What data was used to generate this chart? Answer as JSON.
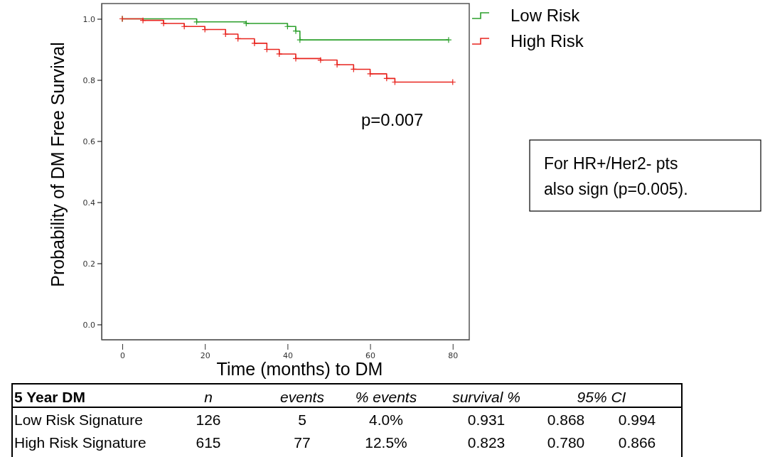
{
  "chart_data": {
    "type": "step",
    "xlabel": "Time (months) to DM",
    "ylabel": "Probability of DM Free Survival",
    "xlim": [
      -5,
      84
    ],
    "xticks": [
      0,
      20,
      40,
      60,
      80
    ],
    "ylim": [
      -0.05,
      1.05
    ],
    "yticks": [
      {
        "value": 0,
        "label": "0.0"
      },
      0.2,
      0.4,
      0.6,
      0.8,
      {
        "value": 1,
        "label": "1.0"
      }
    ],
    "series": [
      {
        "name": "Low Risk",
        "color": "#2ca02c",
        "x": [
          0,
          18,
          30,
          40,
          42,
          43,
          79
        ],
        "values": [
          1,
          0.99,
          0.985,
          0.975,
          0.96,
          0.931,
          0.931
        ]
      },
      {
        "name": "High Risk",
        "color": "#e8251f",
        "x": [
          0,
          5,
          10,
          15,
          20,
          25,
          28,
          32,
          35,
          38,
          42,
          48,
          52,
          56,
          60,
          64,
          66,
          80
        ],
        "values": [
          1,
          0.995,
          0.985,
          0.975,
          0.965,
          0.95,
          0.935,
          0.92,
          0.9,
          0.885,
          0.87,
          0.865,
          0.85,
          0.835,
          0.82,
          0.805,
          0.793,
          0.793
        ]
      }
    ],
    "marker": "cross",
    "grid": false,
    "legend": "top right",
    "annotations": [
      "p=0.007",
      "For HR+/Her2- pts also sign (p=0.005).",
      "5 Year DM",
      "n",
      "events",
      "% events",
      "survival %",
      "95% CI",
      "Low Risk Signature",
      "126",
      "5",
      "4.0%",
      "0.931",
      "0.868",
      "0.994",
      "High Risk Signature",
      "615",
      "77",
      "12.5%",
      "0.823",
      "0.780",
      "0.866"
    ]
  }
}
